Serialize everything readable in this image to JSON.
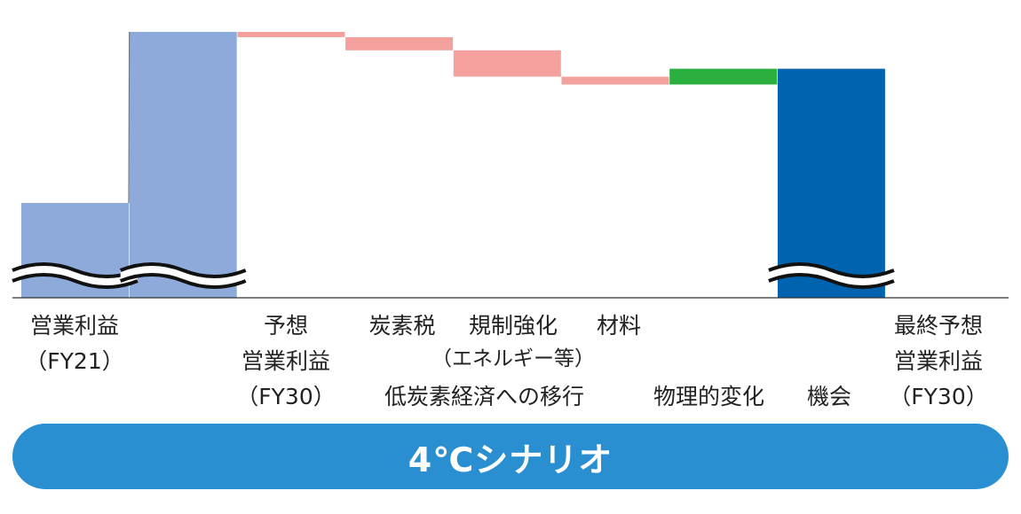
{
  "chart_data": {
    "type": "waterfall",
    "scenario": "4℃シナリオ",
    "bars": [
      {
        "label": [
          "営業利益",
          "（FY21）"
        ],
        "kind": "total",
        "value": 35,
        "color": "#8eaadb"
      },
      {
        "label": [
          "予想",
          "営業利益",
          "（FY30）"
        ],
        "kind": "total",
        "value": 100,
        "color": "#8eaadb"
      },
      {
        "label": [
          "炭素税"
        ],
        "kind": "delta",
        "value": -2,
        "color": "#f4a09c"
      },
      {
        "label": [
          "規制強化",
          "（エネルギー等）"
        ],
        "kind": "delta",
        "value": -5,
        "color": "#f4a09c"
      },
      {
        "label": [
          "材料"
        ],
        "kind": "delta",
        "value": -10,
        "color": "#f4a09c"
      },
      {
        "label": [],
        "kind": "delta",
        "value": -3,
        "color": "#f4a09c"
      },
      {
        "label": [],
        "kind": "delta",
        "value": 6,
        "color": "#2bb03f"
      },
      {
        "label": [
          "最終予想",
          "営業利益",
          "（FY30）"
        ],
        "kind": "total",
        "value": 86,
        "color": "#0063b0"
      }
    ],
    "groups": [
      {
        "label": "低炭素経済への移行"
      },
      {
        "label": "物理的変化"
      },
      {
        "label": "機会"
      }
    ],
    "axis_break": true
  }
}
